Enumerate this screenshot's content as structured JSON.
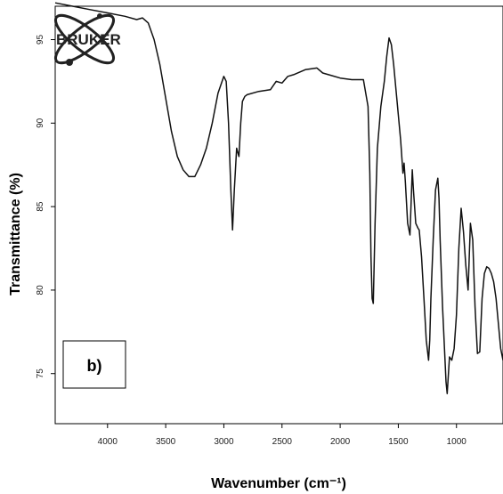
{
  "logo": {
    "text": "BRUKER"
  },
  "chart_data": {
    "type": "line",
    "title": "",
    "xlabel": "Wavenumber (cm⁻¹)",
    "ylabel": "Transmittance  (%)",
    "panel_label": "b)",
    "xlim": [
      4450,
      600
    ],
    "ylim": [
      72,
      97
    ],
    "x_reversed": true,
    "grid": false,
    "x_ticks": [
      4000,
      3500,
      3000,
      2500,
      2000,
      1500,
      1000
    ],
    "x_tick_labels": [
      "4000",
      "3500",
      "3000",
      "2500",
      "2000",
      "1500",
      "1000"
    ],
    "y_ticks": [
      75,
      80,
      85,
      90,
      95
    ],
    "y_tick_labels": [
      "75",
      "80",
      "85",
      "90",
      "95"
    ],
    "series": [
      {
        "color": "#111111",
        "x": [
          4450,
          4300,
          4150,
          4000,
          3850,
          3750,
          3700,
          3650,
          3600,
          3550,
          3500,
          3450,
          3400,
          3350,
          3300,
          3250,
          3200,
          3150,
          3100,
          3050,
          3000,
          2980,
          2960,
          2940,
          2925,
          2910,
          2890,
          2870,
          2855,
          2840,
          2820,
          2800,
          2700,
          2600,
          2550,
          2500,
          2450,
          2400,
          2300,
          2200,
          2150,
          2100,
          2000,
          1900,
          1800,
          1760,
          1745,
          1735,
          1725,
          1715,
          1700,
          1680,
          1650,
          1620,
          1600,
          1580,
          1560,
          1540,
          1520,
          1500,
          1480,
          1460,
          1450,
          1440,
          1420,
          1400,
          1380,
          1370,
          1350,
          1330,
          1320,
          1300,
          1280,
          1260,
          1240,
          1230,
          1220,
          1200,
          1180,
          1160,
          1150,
          1140,
          1120,
          1100,
          1090,
          1080,
          1060,
          1040,
          1020,
          1000,
          980,
          960,
          940,
          920,
          900,
          880,
          860,
          840,
          820,
          800,
          780,
          760,
          740,
          720,
          700,
          680,
          660,
          640,
          620,
          600
        ],
        "y": [
          97.2,
          97.0,
          96.8,
          96.6,
          96.4,
          96.2,
          96.3,
          96.0,
          95.0,
          93.5,
          91.5,
          89.5,
          88.0,
          87.2,
          86.8,
          86.8,
          87.5,
          88.5,
          90.0,
          91.8,
          92.8,
          92.5,
          90.0,
          86.0,
          83.6,
          86.0,
          88.5,
          88.0,
          90.0,
          91.3,
          91.6,
          91.7,
          91.9,
          92.0,
          92.5,
          92.4,
          92.8,
          92.9,
          93.2,
          93.3,
          93.0,
          92.9,
          92.7,
          92.6,
          92.6,
          91.0,
          87.0,
          82.0,
          79.5,
          79.2,
          84.0,
          88.5,
          91.0,
          92.5,
          94.0,
          95.1,
          94.7,
          93.5,
          92.0,
          90.5,
          89.0,
          87.0,
          87.6,
          86.5,
          84.0,
          83.3,
          87.2,
          86.0,
          84.0,
          83.7,
          83.6,
          82.0,
          79.5,
          77.0,
          75.8,
          77.0,
          79.5,
          83.0,
          86.0,
          86.7,
          85.5,
          83.0,
          79.0,
          76.0,
          74.5,
          73.8,
          76.0,
          75.8,
          76.5,
          78.5,
          82.5,
          84.9,
          83.5,
          81.5,
          80.0,
          84.0,
          83.0,
          79.0,
          76.2,
          76.3,
          79.5,
          81.0,
          81.4,
          81.3,
          81.0,
          80.5,
          79.5,
          78.0,
          76.5,
          75.8
        ]
      }
    ]
  }
}
